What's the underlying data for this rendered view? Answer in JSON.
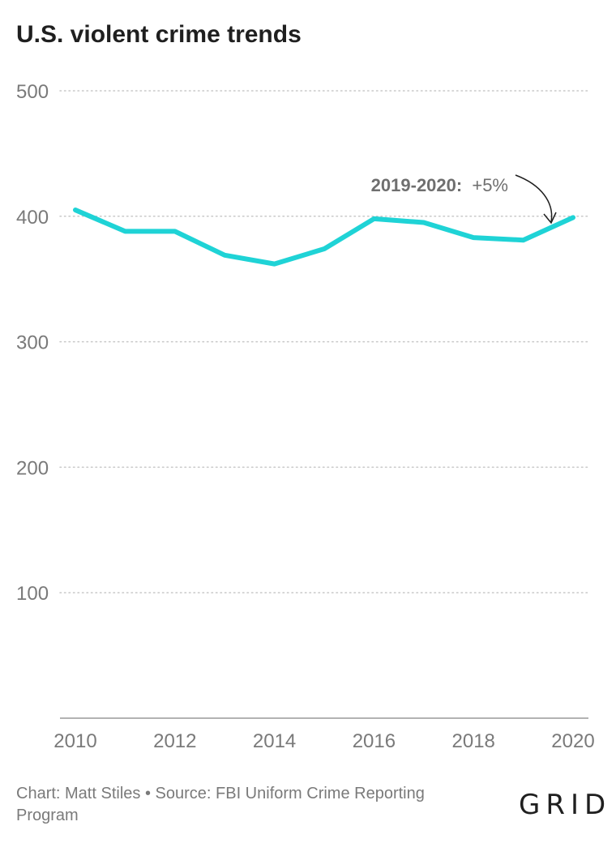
{
  "title": "U.S. violent crime trends",
  "footer": {
    "credit": "Chart: Matt Stiles",
    "separator": "•",
    "source": "Source: FBI Uniform Crime Reporting Program"
  },
  "logo": "GRID",
  "colors": {
    "line": "#1fd3d6",
    "text": "#1f1f1f",
    "axis": "#7a7a7a",
    "grid": "#c8c8c8"
  },
  "chart_data": {
    "type": "line",
    "title": "U.S. violent crime trends",
    "xlabel": "",
    "ylabel": "",
    "x": [
      2010,
      2011,
      2012,
      2013,
      2014,
      2015,
      2016,
      2017,
      2018,
      2019,
      2020
    ],
    "series": [
      {
        "values": [
          405,
          388,
          388,
          369,
          362,
          374,
          398,
          395,
          383,
          381,
          399
        ]
      }
    ],
    "ylim": [
      0,
      500
    ],
    "xlim": [
      2010,
      2020
    ],
    "y_ticks": [
      100,
      200,
      300,
      400,
      500
    ],
    "x_ticks": [
      2010,
      2012,
      2014,
      2016,
      2018,
      2020
    ],
    "grid": "horizontal dotted",
    "annotation": {
      "bold": "2019-2020:",
      "text": "+5%"
    }
  }
}
